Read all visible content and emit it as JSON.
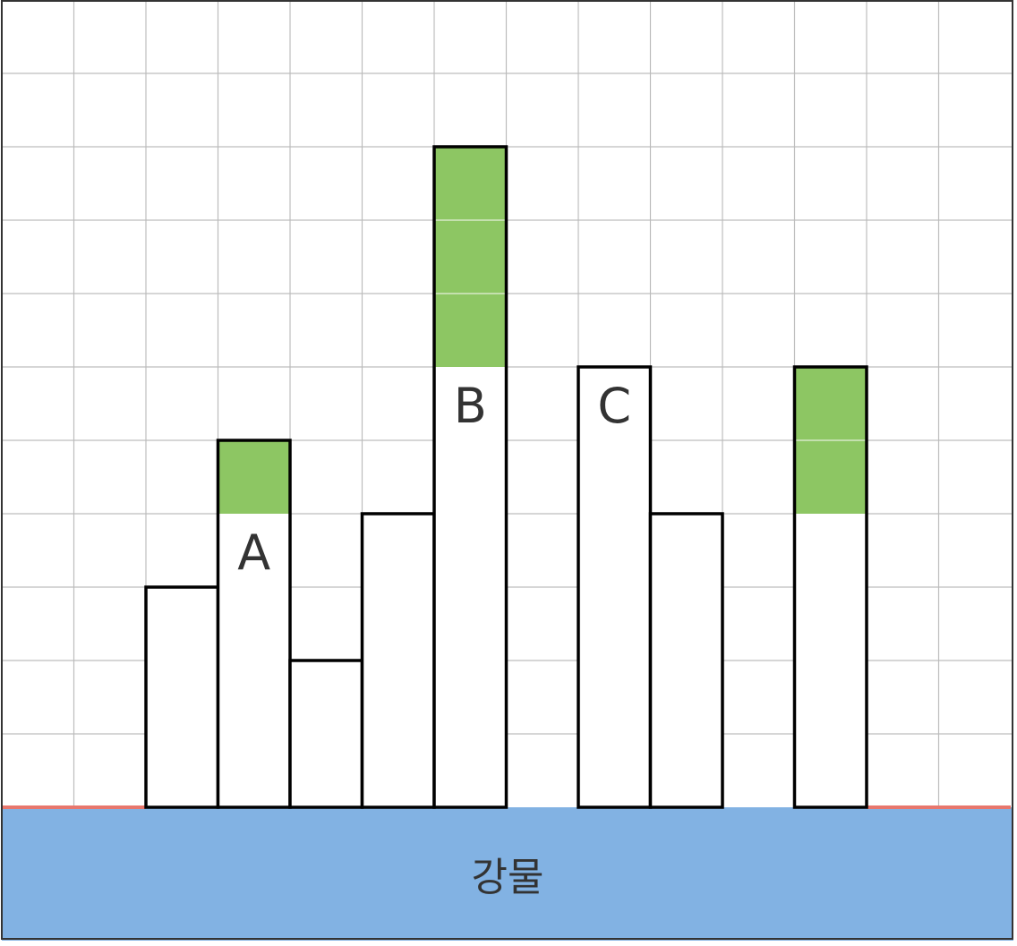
{
  "diagram": {
    "grid_columns": 14,
    "grid_rows": 11,
    "colors": {
      "grid": "#bdbdbd",
      "frame": "#333333",
      "building_stroke": "#000000",
      "building_fill": "#ffffff",
      "highlight": "#8dc663",
      "water": "#82b2e3",
      "shore": "#e8776d",
      "label": "#333333"
    },
    "buildings": [
      {
        "col": 2,
        "height": 3,
        "highlight": 0,
        "label": ""
      },
      {
        "col": 3,
        "height": 5,
        "highlight": 1,
        "label": "A"
      },
      {
        "col": 4,
        "height": 2,
        "highlight": 0,
        "label": ""
      },
      {
        "col": 5,
        "height": 4,
        "highlight": 0,
        "label": ""
      },
      {
        "col": 6,
        "height": 9,
        "highlight": 3,
        "label": "B"
      },
      {
        "col": 8,
        "height": 6,
        "highlight": 0,
        "label": "C"
      },
      {
        "col": 9,
        "height": 4,
        "highlight": 0,
        "label": ""
      },
      {
        "col": 11,
        "height": 6,
        "highlight": 2,
        "label": ""
      }
    ],
    "shore_segments": [
      {
        "from_col": 0,
        "to_col": 2
      },
      {
        "from_col": 12,
        "to_col": 14
      }
    ],
    "water_label": "강물"
  }
}
